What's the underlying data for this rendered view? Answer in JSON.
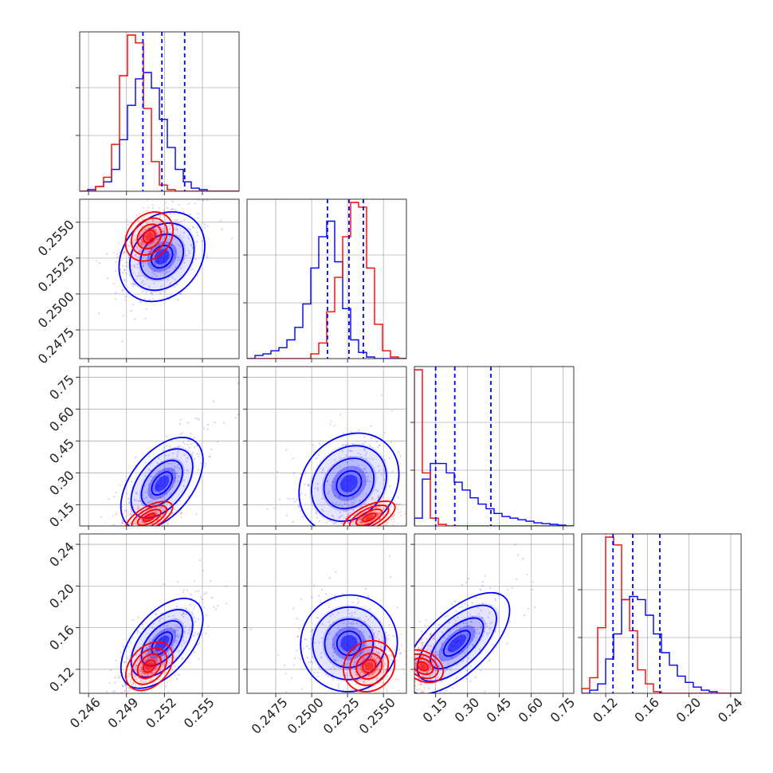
{
  "chart_data": {
    "type": "corner",
    "colors": {
      "blue": "#0000ff",
      "red": "#ff0000",
      "grid": "#b0b0b0"
    },
    "params": [
      {
        "range": [
          0.2453,
          0.2579
        ],
        "ticks": [
          "0.246",
          "0.249",
          "0.252",
          "0.255"
        ],
        "tick_values": [
          0.246,
          0.249,
          0.252,
          0.255
        ]
      },
      {
        "range": [
          0.2455,
          0.2566
        ],
        "ticks": [
          "0.2475",
          "0.2500",
          "0.2525",
          "0.2550"
        ],
        "tick_values": [
          0.2475,
          0.25,
          0.2525,
          0.255
        ]
      },
      {
        "range": [
          0.05,
          0.8
        ],
        "ticks": [
          "0.15",
          "0.30",
          "0.45",
          "0.60",
          "0.75"
        ],
        "tick_values": [
          0.15,
          0.3,
          0.45,
          0.6,
          0.75
        ]
      },
      {
        "range": [
          0.097,
          0.25
        ],
        "ticks": [
          "0.12",
          "0.16",
          "0.20",
          "0.24"
        ],
        "tick_values": [
          0.12,
          0.16,
          0.2,
          0.24
        ]
      }
    ],
    "series": [
      {
        "color": "blue",
        "mean": [
          0.2518,
          0.2526,
          0.25,
          0.145
        ],
        "sd": [
          0.0016,
          0.0017,
          0.12,
          0.023
        ],
        "corr": [
          [
            1,
            0.45,
            0.75,
            0.75
          ],
          [
            0.45,
            1,
            0.25,
            0.0
          ],
          [
            0.75,
            0.25,
            1,
            0.7
          ],
          [
            0.75,
            0.0,
            0.7,
            1
          ]
        ],
        "quantiles": [
          [
            0.2503,
            0.2518,
            0.2536
          ],
          [
            0.2511,
            0.2526,
            0.2536
          ],
          [
            0.15,
            0.24,
            0.41
          ],
          [
            0.127,
            0.146,
            0.172
          ]
        ]
      },
      {
        "color": "red",
        "mean": [
          0.2508,
          0.254,
          0.09,
          0.123
        ],
        "sd": [
          0.0009,
          0.0009,
          0.03,
          0.012
        ],
        "corr": [
          [
            1,
            0.4,
            0.3,
            0.5
          ],
          [
            0.4,
            1,
            0.2,
            0.1
          ],
          [
            0.3,
            0.2,
            1,
            0.3
          ],
          [
            0.5,
            0.1,
            0.3,
            1
          ]
        ]
      }
    ],
    "histograms": [
      {
        "param": 0,
        "bins": 20,
        "blue": [
          0,
          0.01,
          0.03,
          0.06,
          0.14,
          0.33,
          0.55,
          0.72,
          0.76,
          0.66,
          0.46,
          0.28,
          0.14,
          0.06,
          0.02,
          0.01,
          0,
          0,
          0,
          0
        ],
        "red": [
          0,
          0,
          0.03,
          0.09,
          0.3,
          0.74,
          1.0,
          0.95,
          0.53,
          0.19,
          0.04,
          0.01,
          0,
          0,
          0,
          0,
          0,
          0,
          0,
          0
        ]
      },
      {
        "param": 1,
        "bins": 20,
        "blue": [
          0,
          0.02,
          0.03,
          0.05,
          0.07,
          0.12,
          0.2,
          0.35,
          0.58,
          0.78,
          0.88,
          0.62,
          0.32,
          0.12,
          0.04,
          0.01,
          0,
          0,
          0,
          0
        ],
        "red": [
          0,
          0,
          0,
          0,
          0,
          0,
          0,
          0,
          0.03,
          0.1,
          0.3,
          0.52,
          0.78,
          1.0,
          0.97,
          0.58,
          0.22,
          0.05,
          0.01,
          0
        ]
      },
      {
        "param": 2,
        "bins": 20,
        "blue": [
          0.05,
          0.3,
          0.4,
          0.4,
          0.34,
          0.28,
          0.23,
          0.18,
          0.14,
          0.11,
          0.08,
          0.06,
          0.05,
          0.04,
          0.03,
          0.02,
          0.015,
          0.01,
          0.005,
          0
        ],
        "red": [
          1.0,
          0.34,
          0.05,
          0.01,
          0,
          0,
          0,
          0,
          0,
          0,
          0,
          0,
          0,
          0,
          0,
          0,
          0,
          0,
          0,
          0
        ]
      },
      {
        "param": 3,
        "bins": 20,
        "blue": [
          0,
          0.02,
          0.06,
          0.22,
          0.38,
          0.6,
          0.62,
          0.6,
          0.5,
          0.38,
          0.26,
          0.18,
          0.11,
          0.07,
          0.04,
          0.02,
          0.01,
          0,
          0,
          0
        ],
        "red": [
          0.03,
          0.1,
          0.42,
          1.0,
          0.95,
          0.6,
          0.4,
          0.15,
          0.06,
          0.01,
          0,
          0,
          0,
          0,
          0,
          0,
          0,
          0,
          0,
          0
        ]
      }
    ],
    "contour_levels_sigma": [
      0.5,
      1.0,
      1.5,
      2.0
    ],
    "grid": true,
    "title": "",
    "legend": ""
  }
}
